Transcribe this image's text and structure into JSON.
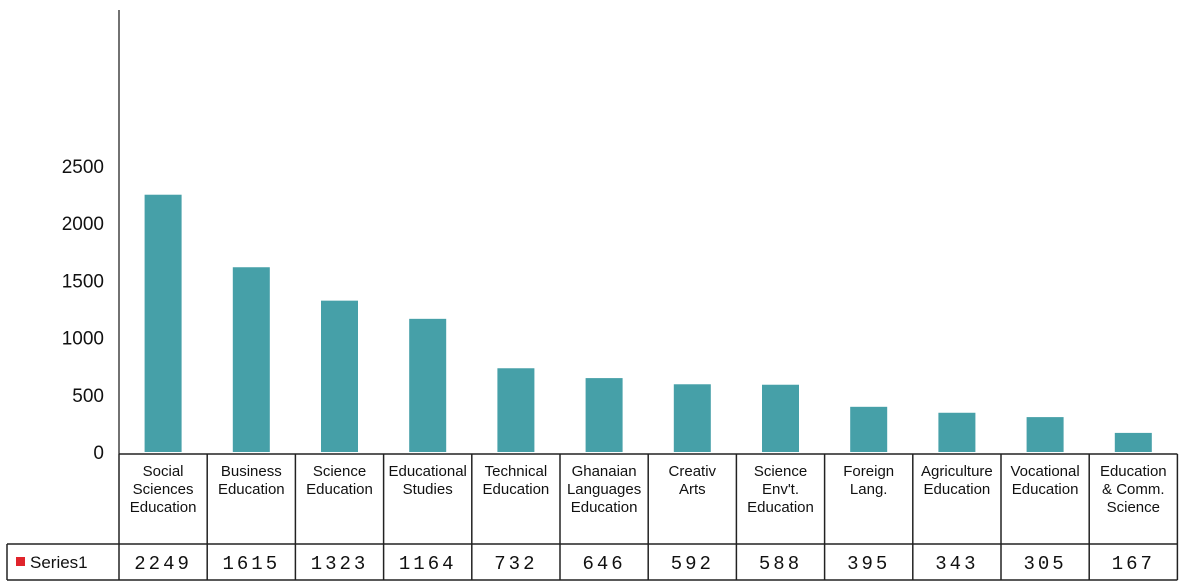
{
  "chart_data": {
    "type": "bar",
    "categories": [
      [
        "Social",
        "Sciences",
        "Education"
      ],
      [
        "Business",
        "Education"
      ],
      [
        "Science",
        "Education"
      ],
      [
        "Educational",
        "Studies"
      ],
      [
        "Technical",
        "Education"
      ],
      [
        "Ghanaian",
        "Languages",
        "Education"
      ],
      [
        "Creativ",
        "Arts"
      ],
      [
        "Science",
        "Env't.",
        "Education"
      ],
      [
        "Foreign",
        "Lang."
      ],
      [
        "Agriculture",
        "Education"
      ],
      [
        "Vocational",
        "Education"
      ],
      [
        "Education",
        "& Comm.",
        "Science"
      ]
    ],
    "series": [
      {
        "name": "Series1",
        "values": [
          2249,
          1615,
          1323,
          1164,
          732,
          646,
          592,
          588,
          395,
          343,
          305,
          167
        ],
        "color": "#46a0a8",
        "legend_marker_color": "#e0242b"
      }
    ],
    "yticks": [
      "0",
      "500",
      "1000",
      "1500",
      "2000",
      "2500"
    ],
    "ylim": [
      0,
      2500
    ],
    "title": "",
    "xlabel": "",
    "ylabel": "",
    "legend": "data-table-left",
    "grid": false
  }
}
